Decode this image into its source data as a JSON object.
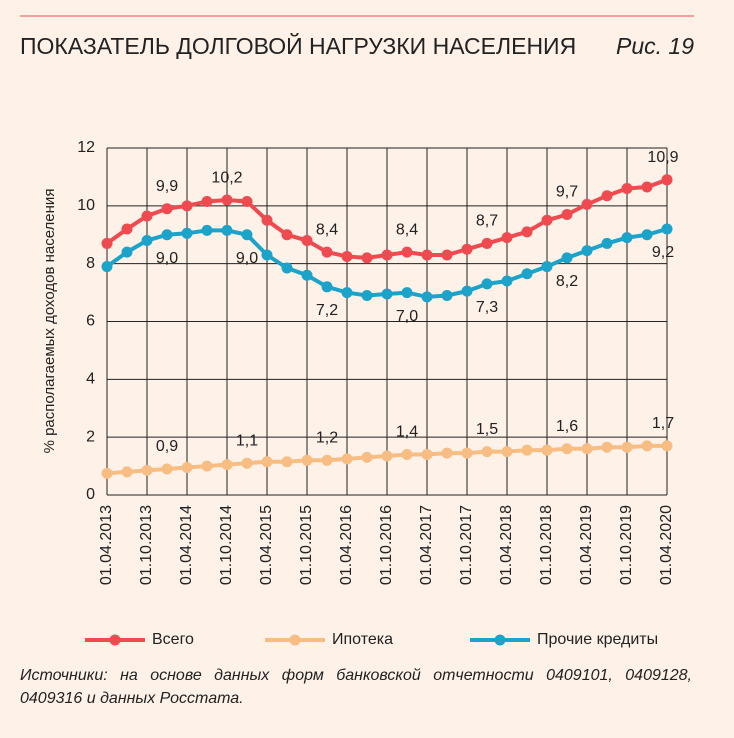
{
  "title": "ПОКАЗАТЕЛЬ ДОЛГОВОЙ НАГРУЗКИ НАСЕЛЕНИЯ",
  "figure": "Рис. 19",
  "source": "Источники: на основе данных форм банковской отчетности 0409101, 0409128, 0409316 и данных Росстата.",
  "chart_data": {
    "type": "line",
    "y_label": "% располагаемых доходов населения",
    "categories": [
      "01.04.2013",
      null,
      "01.10.2013",
      null,
      "01.04.2014",
      null,
      "01.10.2014",
      null,
      "01.04.2015",
      null,
      "01.10.2015",
      null,
      "01.04.2016",
      null,
      "01.10.2016",
      null,
      "01.04.2017",
      null,
      "01.10.2017",
      null,
      "01.04.2018",
      null,
      "01.10.2018",
      null,
      "01.04.2019",
      null,
      "01.10.2019",
      null,
      "01.04.2020"
    ],
    "ylim": [
      0,
      12
    ],
    "yticks": [
      0,
      2,
      4,
      6,
      8,
      10,
      12
    ],
    "grid": true,
    "legend": "bottom",
    "series": [
      {
        "name": "Всего",
        "color": "#ef4a50",
        "values": [
          8.7,
          9.2,
          9.65,
          9.9,
          10.0,
          10.15,
          10.2,
          10.15,
          9.5,
          9.0,
          8.8,
          8.4,
          8.25,
          8.2,
          8.3,
          8.4,
          8.3,
          8.3,
          8.5,
          8.7,
          8.9,
          9.1,
          9.5,
          9.7,
          10.05,
          10.35,
          10.6,
          10.65,
          10.9
        ],
        "value_labels": [
          null,
          null,
          null,
          "9,9",
          null,
          null,
          "10,2",
          null,
          null,
          null,
          null,
          "8,4",
          null,
          null,
          null,
          "8,4",
          null,
          null,
          null,
          "8,7",
          null,
          null,
          null,
          "9,7",
          null,
          null,
          null,
          null,
          "10,9"
        ]
      },
      {
        "name": "Ипотека",
        "color": "#f8bd82",
        "values": [
          0.75,
          0.8,
          0.85,
          0.9,
          0.95,
          1.0,
          1.05,
          1.1,
          1.15,
          1.15,
          1.2,
          1.2,
          1.25,
          1.3,
          1.35,
          1.4,
          1.4,
          1.45,
          1.45,
          1.5,
          1.5,
          1.55,
          1.55,
          1.6,
          1.6,
          1.65,
          1.65,
          1.7,
          1.7
        ],
        "value_labels": [
          null,
          null,
          null,
          "0,9",
          null,
          null,
          null,
          "1,1",
          null,
          null,
          null,
          "1,2",
          null,
          null,
          null,
          "1,4",
          null,
          null,
          null,
          "1,5",
          null,
          null,
          null,
          "1,6",
          null,
          null,
          null,
          null,
          "1,7"
        ]
      },
      {
        "name": "Прочие кредиты",
        "color": "#1ba3ca",
        "values": [
          7.9,
          8.4,
          8.8,
          9.0,
          9.05,
          9.15,
          9.15,
          9.0,
          8.3,
          7.85,
          7.6,
          7.2,
          7.0,
          6.9,
          6.95,
          7.0,
          6.85,
          6.9,
          7.05,
          7.3,
          7.4,
          7.65,
          7.9,
          8.2,
          8.45,
          8.7,
          8.9,
          9.0,
          9.2
        ],
        "value_labels": [
          null,
          null,
          null,
          "9,0",
          null,
          null,
          null,
          "9,0",
          null,
          null,
          null,
          "7,2",
          null,
          null,
          null,
          "7,0",
          null,
          null,
          null,
          "7,3",
          null,
          null,
          null,
          "8,2",
          null,
          null,
          null,
          null,
          "9,2"
        ]
      }
    ]
  }
}
